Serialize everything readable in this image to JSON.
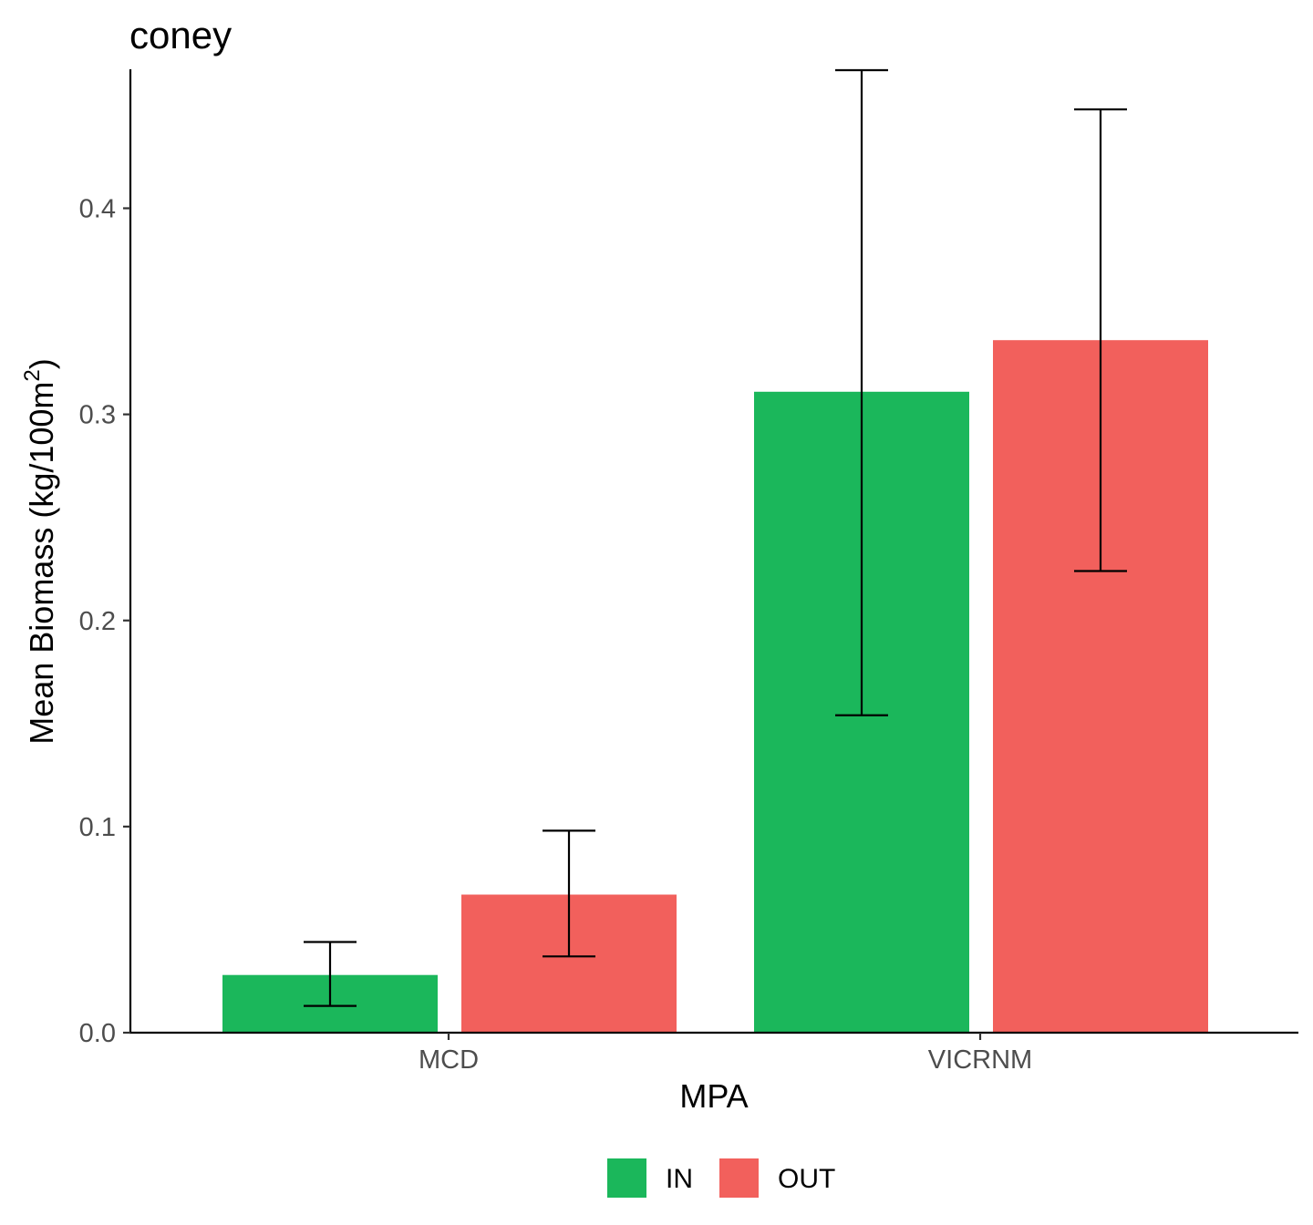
{
  "chart_data": {
    "type": "bar",
    "title": "coney",
    "xlabel": "MPA",
    "ylabel": "Mean Biomass (kg/100m",
    "ylabel_superscript": "2",
    "ylabel_suffix": ")",
    "categories": [
      "MCD",
      "VICRNM"
    ],
    "ylim": [
      0,
      0.467
    ],
    "yticks": [
      0.0,
      0.1,
      0.2,
      0.3,
      0.4
    ],
    "ytick_labels": [
      "0.0",
      "0.1",
      "0.2",
      "0.3",
      "0.4"
    ],
    "grid": false,
    "legend_position": "bottom",
    "series": [
      {
        "name": "IN",
        "color": "#1BB75B",
        "values": [
          0.028,
          0.311
        ],
        "error_low": [
          0.013,
          0.154
        ],
        "error_high": [
          0.044,
          0.467
        ]
      },
      {
        "name": "OUT",
        "color": "#F2605C",
        "values": [
          0.067,
          0.336
        ],
        "error_low": [
          0.037,
          0.224
        ],
        "error_high": [
          0.098,
          0.448
        ]
      }
    ]
  }
}
